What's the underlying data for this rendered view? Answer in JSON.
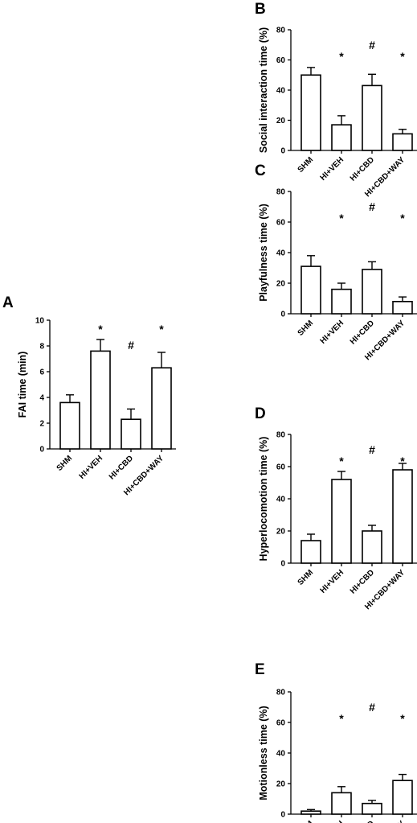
{
  "chart_data": [
    {
      "panel": "A",
      "type": "bar",
      "ylabel": "FAI time (min)",
      "ylim": [
        0,
        10
      ],
      "yticks": [
        "0",
        "2",
        "4",
        "6",
        "8",
        "10"
      ],
      "categories": [
        "SHM",
        "HI+VEH",
        "HI+CBD",
        "HI+CBD+WAY"
      ],
      "values": [
        3.6,
        7.6,
        2.3,
        6.3
      ],
      "errors": [
        0.6,
        0.9,
        0.8,
        1.2
      ],
      "annotations": [
        "",
        "*",
        "#",
        "*"
      ]
    },
    {
      "panel": "B",
      "type": "bar",
      "ylabel": "Social interaction time (%)",
      "ylim": [
        0,
        80
      ],
      "yticks": [
        "0",
        "20",
        "40",
        "60",
        "80"
      ],
      "categories": [
        "SHM",
        "HI+VEH",
        "HI+CBD",
        "HI+CBD+WAY"
      ],
      "values": [
        50,
        17,
        43,
        11
      ],
      "errors": [
        5,
        6,
        7.5,
        3
      ],
      "annotations": [
        "",
        "*",
        "#",
        "*"
      ]
    },
    {
      "panel": "C",
      "type": "bar",
      "ylabel": "Playfulness time (%)",
      "ylim": [
        0,
        80
      ],
      "yticks": [
        "0",
        "20",
        "40",
        "60",
        "80"
      ],
      "categories": [
        "SHM",
        "HI+VEH",
        "HI+CBD",
        "HI+CBD+WAY"
      ],
      "values": [
        31,
        16,
        29,
        8
      ],
      "errors": [
        7,
        4,
        5,
        3
      ],
      "annotations": [
        "",
        "*",
        "#",
        "*"
      ]
    },
    {
      "panel": "D",
      "type": "bar",
      "ylabel": "Hyperlocomotion time (%)",
      "ylim": [
        0,
        80
      ],
      "yticks": [
        "0",
        "20",
        "40",
        "60",
        "80"
      ],
      "categories": [
        "SHM",
        "HI+VEH",
        "HI+CBD",
        "HI+CBD+WAY"
      ],
      "values": [
        14,
        52,
        20,
        58
      ],
      "errors": [
        4,
        5,
        3.5,
        4
      ],
      "annotations": [
        "",
        "*",
        "#",
        "*"
      ]
    },
    {
      "panel": "E",
      "type": "bar",
      "ylabel": "Motionless time (%)",
      "ylim": [
        0,
        80
      ],
      "yticks": [
        "0",
        "20",
        "40",
        "60",
        "80"
      ],
      "categories": [
        "SHM",
        "HI+VEH",
        "HI+CBD",
        "HI+CBD+WAY"
      ],
      "values": [
        2,
        14,
        7,
        22
      ],
      "errors": [
        1,
        4,
        2,
        4
      ],
      "annotations": [
        "",
        "*",
        "#",
        "*"
      ]
    }
  ]
}
